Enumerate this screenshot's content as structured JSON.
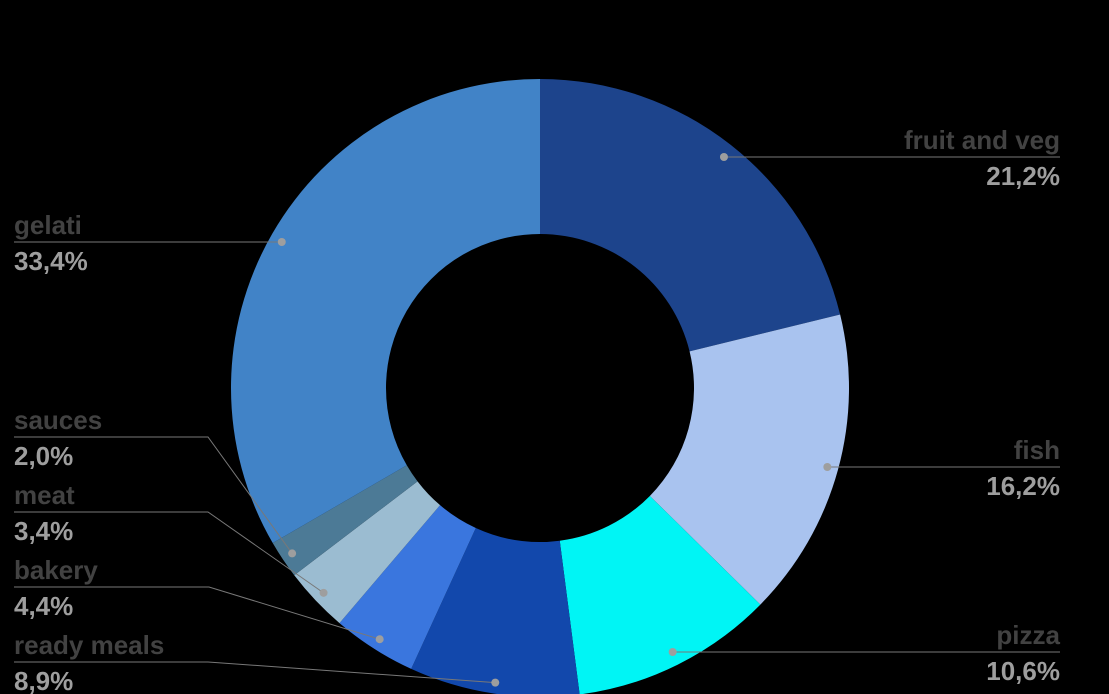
{
  "background_color": "#000000",
  "chart_data": {
    "type": "pie",
    "subtype": "donut",
    "title": "",
    "unit": "%",
    "legend_position": "callout-labels",
    "label_text_color": "#424242",
    "value_text_color": "#9E9E9E",
    "callout_line_color": "#787878",
    "callout_dot_color": "#9E9E9E",
    "slices": [
      {
        "label": "fruit and veg",
        "value": 21.2,
        "value_label": "21,2%",
        "color": "#1D448C"
      },
      {
        "label": "fish",
        "value": 16.2,
        "value_label": "16,2%",
        "color": "#A9C3EF"
      },
      {
        "label": "pizza",
        "value": 10.6,
        "value_label": "10,6%",
        "color": "#00F5F5"
      },
      {
        "label": "ready meals",
        "value": 8.9,
        "value_label": "8,9%",
        "color": "#1248AC"
      },
      {
        "label": "bakery",
        "value": 4.4,
        "value_label": "4,4%",
        "color": "#3A76DE"
      },
      {
        "label": "meat",
        "value": 3.4,
        "value_label": "3,4%",
        "color": "#9BBCD1"
      },
      {
        "label": "sauces",
        "value": 2.0,
        "value_label": "2,0%",
        "color": "#4C7A96"
      },
      {
        "label": "gelati",
        "value": 33.4,
        "value_label": "33,4%",
        "color": "#4183C7"
      }
    ]
  }
}
